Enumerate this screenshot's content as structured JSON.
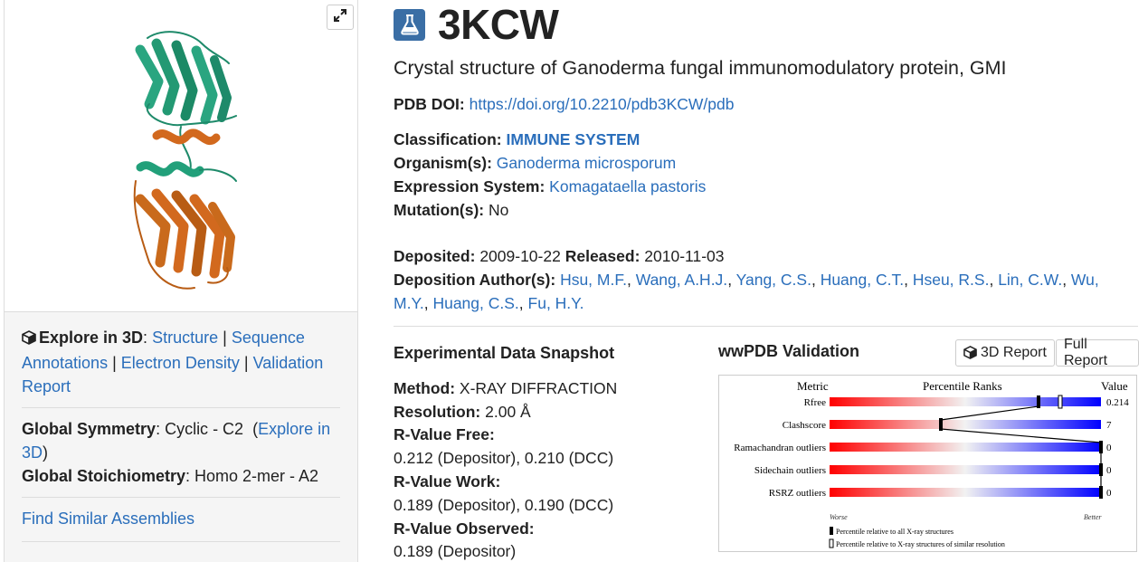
{
  "viewer": {
    "expand_icon": "expand-arrows-icon"
  },
  "explore": {
    "label": "Explore in 3D",
    "colon": ":",
    "structure": "Structure",
    "sep1": "|",
    "sequence_annotations": "Sequence Annotations",
    "sep2": "|",
    "electron_density": "Electron Density",
    "sep3": "|",
    "validation_report": "Validation Report"
  },
  "symmetry": {
    "global_symmetry_label": "Global Symmetry",
    "global_symmetry_value": ": Cyclic - C2",
    "explore_open": "(",
    "explore_link": "Explore in 3D",
    "explore_close": ")",
    "global_stoich_label": "Global Stoichiometry",
    "global_stoich_value": ": Homo 2-mer - A2"
  },
  "find_similar": "Find Similar Assemblies",
  "entry": {
    "id": "3KCW",
    "title": "Crystal structure of Ganoderma fungal immunomodulatory protein, GMI",
    "doi_label": "PDB DOI:",
    "doi": "https://doi.org/10.2210/pdb3KCW/pdb",
    "classification_label": "Classification:",
    "classification": "IMMUNE SYSTEM",
    "organism_label": "Organism(s):",
    "organism": "Ganoderma microsporum",
    "expression_label": "Expression System:",
    "expression": "Komagataella pastoris",
    "mutation_label": "Mutation(s):",
    "mutation": "No",
    "deposited_label": "Deposited:",
    "deposited": "2009-10-22",
    "released_label": "Released:",
    "released": "2010-11-03",
    "authors_label": "Deposition Author(s):",
    "authors": [
      "Hsu, M.F.",
      "Wang, A.H.J.",
      "Yang, C.S.",
      "Huang, C.T.",
      "Hseu, R.S.",
      "Lin, C.W.",
      "Wu, M.Y.",
      "Huang, C.S.",
      "Fu, H.Y."
    ]
  },
  "snapshot": {
    "title": "Experimental Data Snapshot",
    "method_label": "Method:",
    "method": "X-RAY DIFFRACTION",
    "resolution_label": "Resolution:",
    "resolution": "2.00 Å",
    "rfree_label": "R-Value Free:",
    "rfree": "0.212 (Depositor), 0.210 (DCC)",
    "rwork_label": "R-Value Work:",
    "rwork": "0.189 (Depositor), 0.190 (DCC)",
    "robs_label": "R-Value Observed:",
    "robs": "0.189 (Depositor)"
  },
  "validation": {
    "title": "wwPDB Validation",
    "report3d": "3D Report",
    "report3d_icon": "cube-icon",
    "full_report": "Full Report",
    "header_metric": "Metric",
    "header_percentile": "Percentile Ranks",
    "header_value": "Value",
    "worse": "Worse",
    "better": "Better",
    "legend_all": "Percentile relative to all X-ray structures",
    "legend_similar": "Percentile relative to X-ray structures of similar resolution",
    "metrics": [
      {
        "name": "Rfree",
        "value": "0.214",
        "pct_all": 0.77,
        "pct_similar": 0.85
      },
      {
        "name": "Clashscore",
        "value": "7",
        "pct_all": 0.41,
        "pct_similar": null
      },
      {
        "name": "Ramachandran outliers",
        "value": "0",
        "pct_all": 1.0,
        "pct_similar": null
      },
      {
        "name": "Sidechain outliers",
        "value": "0",
        "pct_all": 1.0,
        "pct_similar": null
      },
      {
        "name": "RSRZ outliers",
        "value": "0",
        "pct_all": 1.0,
        "pct_similar": null
      }
    ]
  },
  "colors": {
    "link": "#2a6ebb",
    "icon_bg": "#3a6ea5",
    "worse": "#ff0000",
    "better": "#0000ff"
  }
}
